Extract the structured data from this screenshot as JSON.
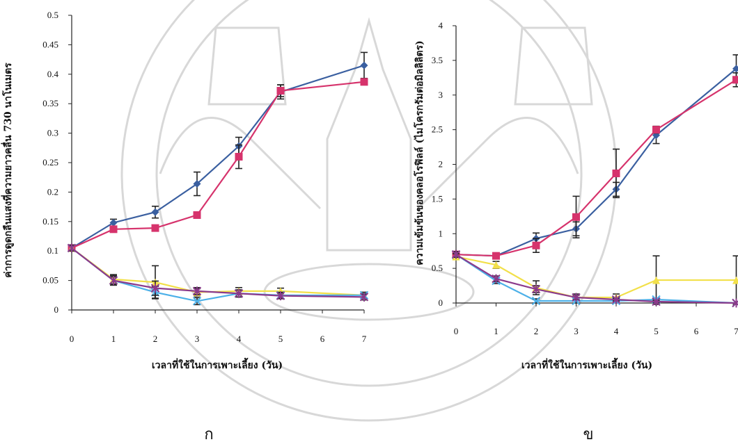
{
  "chart_data": [
    {
      "type": "line",
      "panel_label": "ก",
      "xlabel": "เวลาที่ใช้ในการเพาะเลี้ยง (วัน)",
      "ylabel": "ค่าการดูดกลืนแสงที่ความยาวคลื่น 730 นาโนเมตร",
      "xlim": [
        0,
        7
      ],
      "ylim": [
        0,
        0.5
      ],
      "xticks": [
        "0",
        "1",
        "2",
        "3",
        "4",
        "5",
        "6",
        "7"
      ],
      "yticks": [
        "0",
        "0.05",
        "0.1",
        "0.15",
        "0.2",
        "0.25",
        "0.3",
        "0.35",
        "0.4",
        "0.45",
        "0.5"
      ],
      "grid": false,
      "series": [
        {
          "color": "#3a5fa0",
          "marker": "diamond",
          "x": [
            0,
            1,
            2,
            3,
            4,
            5,
            7
          ],
          "values": [
            0.105,
            0.148,
            0.166,
            0.214,
            0.278,
            0.37,
            0.415
          ],
          "err": [
            0.005,
            0.006,
            0.01,
            0.02,
            0.015,
            0.012,
            0.022
          ]
        },
        {
          "color": "#d6336c",
          "marker": "square",
          "x": [
            0,
            1,
            2,
            3,
            4,
            5,
            7
          ],
          "values": [
            0.105,
            0.137,
            0.139,
            0.161,
            0.26,
            0.372,
            0.387
          ],
          "err": [
            0.005,
            0.005,
            0.005,
            0.005,
            0.02,
            0.01,
            0.005
          ]
        },
        {
          "color": "#f2e04a",
          "marker": "triangle",
          "x": [
            0,
            1,
            2,
            3,
            4,
            5,
            7
          ],
          "values": [
            0.105,
            0.052,
            0.047,
            0.03,
            0.032,
            0.032,
            0.025
          ],
          "err": [
            0.005,
            0.008,
            0.028,
            0.006,
            0.006,
            0.005,
            0.005
          ]
        },
        {
          "color": "#4cb0e8",
          "marker": "x",
          "x": [
            0,
            1,
            2,
            3,
            4,
            5,
            7
          ],
          "values": [
            0.105,
            0.05,
            0.03,
            0.015,
            0.028,
            0.025,
            0.025
          ],
          "err": [
            0.005,
            0.006,
            0.01,
            0.006,
            0.006,
            0.005,
            0.005
          ]
        },
        {
          "color": "#8b3a8b",
          "marker": "star",
          "x": [
            0,
            1,
            2,
            3,
            4,
            5,
            7
          ],
          "values": [
            0.105,
            0.05,
            0.037,
            0.032,
            0.028,
            0.024,
            0.022
          ],
          "err": [
            0.005,
            0.008,
            0.012,
            0.006,
            0.006,
            0.005,
            0.005
          ]
        }
      ]
    },
    {
      "type": "line",
      "panel_label": "ข",
      "xlabel": "เวลาที่ใช้ในการเพาะเลี้ยง (วัน)",
      "ylabel": "ความเข้มข้นของคลอโรฟิลล์ (ไมโครกรัมต่อมิลลิลิตร)",
      "xlim": [
        0,
        7
      ],
      "ylim": [
        0,
        4
      ],
      "xticks": [
        "0",
        "1",
        "2",
        "3",
        "4",
        "5",
        "6",
        "7"
      ],
      "yticks": [
        "0",
        "0.5",
        "1",
        "1.5",
        "2",
        "2.5",
        "3",
        "3.5",
        "4"
      ],
      "grid": false,
      "series": [
        {
          "color": "#3a5fa0",
          "marker": "diamond",
          "x": [
            0,
            1,
            2,
            3,
            4,
            5,
            7
          ],
          "values": [
            0.7,
            0.68,
            0.93,
            1.07,
            1.64,
            2.42,
            3.38
          ],
          "err": [
            0.04,
            0.04,
            0.08,
            0.1,
            0.1,
            0.12,
            0.2
          ]
        },
        {
          "color": "#d6336c",
          "marker": "square",
          "x": [
            0,
            1,
            2,
            3,
            4,
            5,
            7
          ],
          "values": [
            0.7,
            0.68,
            0.83,
            1.24,
            1.87,
            2.5,
            3.22
          ],
          "err": [
            0.04,
            0.04,
            0.1,
            0.3,
            0.35,
            0.05,
            0.1
          ]
        },
        {
          "color": "#f2e04a",
          "marker": "triangle",
          "x": [
            0,
            1,
            2,
            3,
            4,
            5,
            7
          ],
          "values": [
            0.67,
            0.55,
            0.22,
            0.08,
            0.08,
            0.33,
            0.33
          ],
          "err": [
            0.04,
            0.05,
            0.1,
            0.05,
            0.05,
            0.35,
            0.35
          ]
        },
        {
          "color": "#4cb0e8",
          "marker": "x",
          "x": [
            0,
            1,
            2,
            3,
            4,
            5,
            7
          ],
          "values": [
            0.7,
            0.32,
            0.03,
            0.03,
            0.03,
            0.05,
            0.0
          ],
          "err": [
            0.04,
            0.04,
            0.03,
            0.03,
            0.02,
            0.02,
            0.0
          ]
        },
        {
          "color": "#8b3a8b",
          "marker": "star",
          "x": [
            0,
            1,
            2,
            3,
            4,
            5,
            7
          ],
          "values": [
            0.7,
            0.35,
            0.2,
            0.08,
            0.05,
            0.02,
            0.0
          ],
          "err": [
            0.04,
            0.04,
            0.05,
            0.03,
            0.02,
            0.02,
            0.0
          ]
        }
      ]
    }
  ],
  "watermark": {
    "color": "#c8c8c8"
  }
}
